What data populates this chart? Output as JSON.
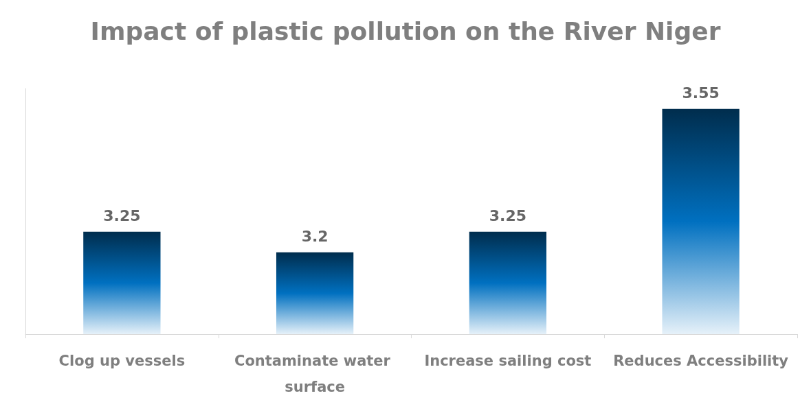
{
  "chart_data": {
    "type": "bar",
    "title": "Impact of plastic pollution on the River Niger",
    "categories": [
      "Clog up vessels",
      "Contaminate water surface",
      "Increase sailing cost",
      "Reduces Accessibility"
    ],
    "values": [
      3.25,
      3.2,
      3.25,
      3.55
    ],
    "color": "#0070c0",
    "ylim": [
      3.0,
      3.6
    ],
    "tick_labels": "x",
    "data_labels": true
  }
}
